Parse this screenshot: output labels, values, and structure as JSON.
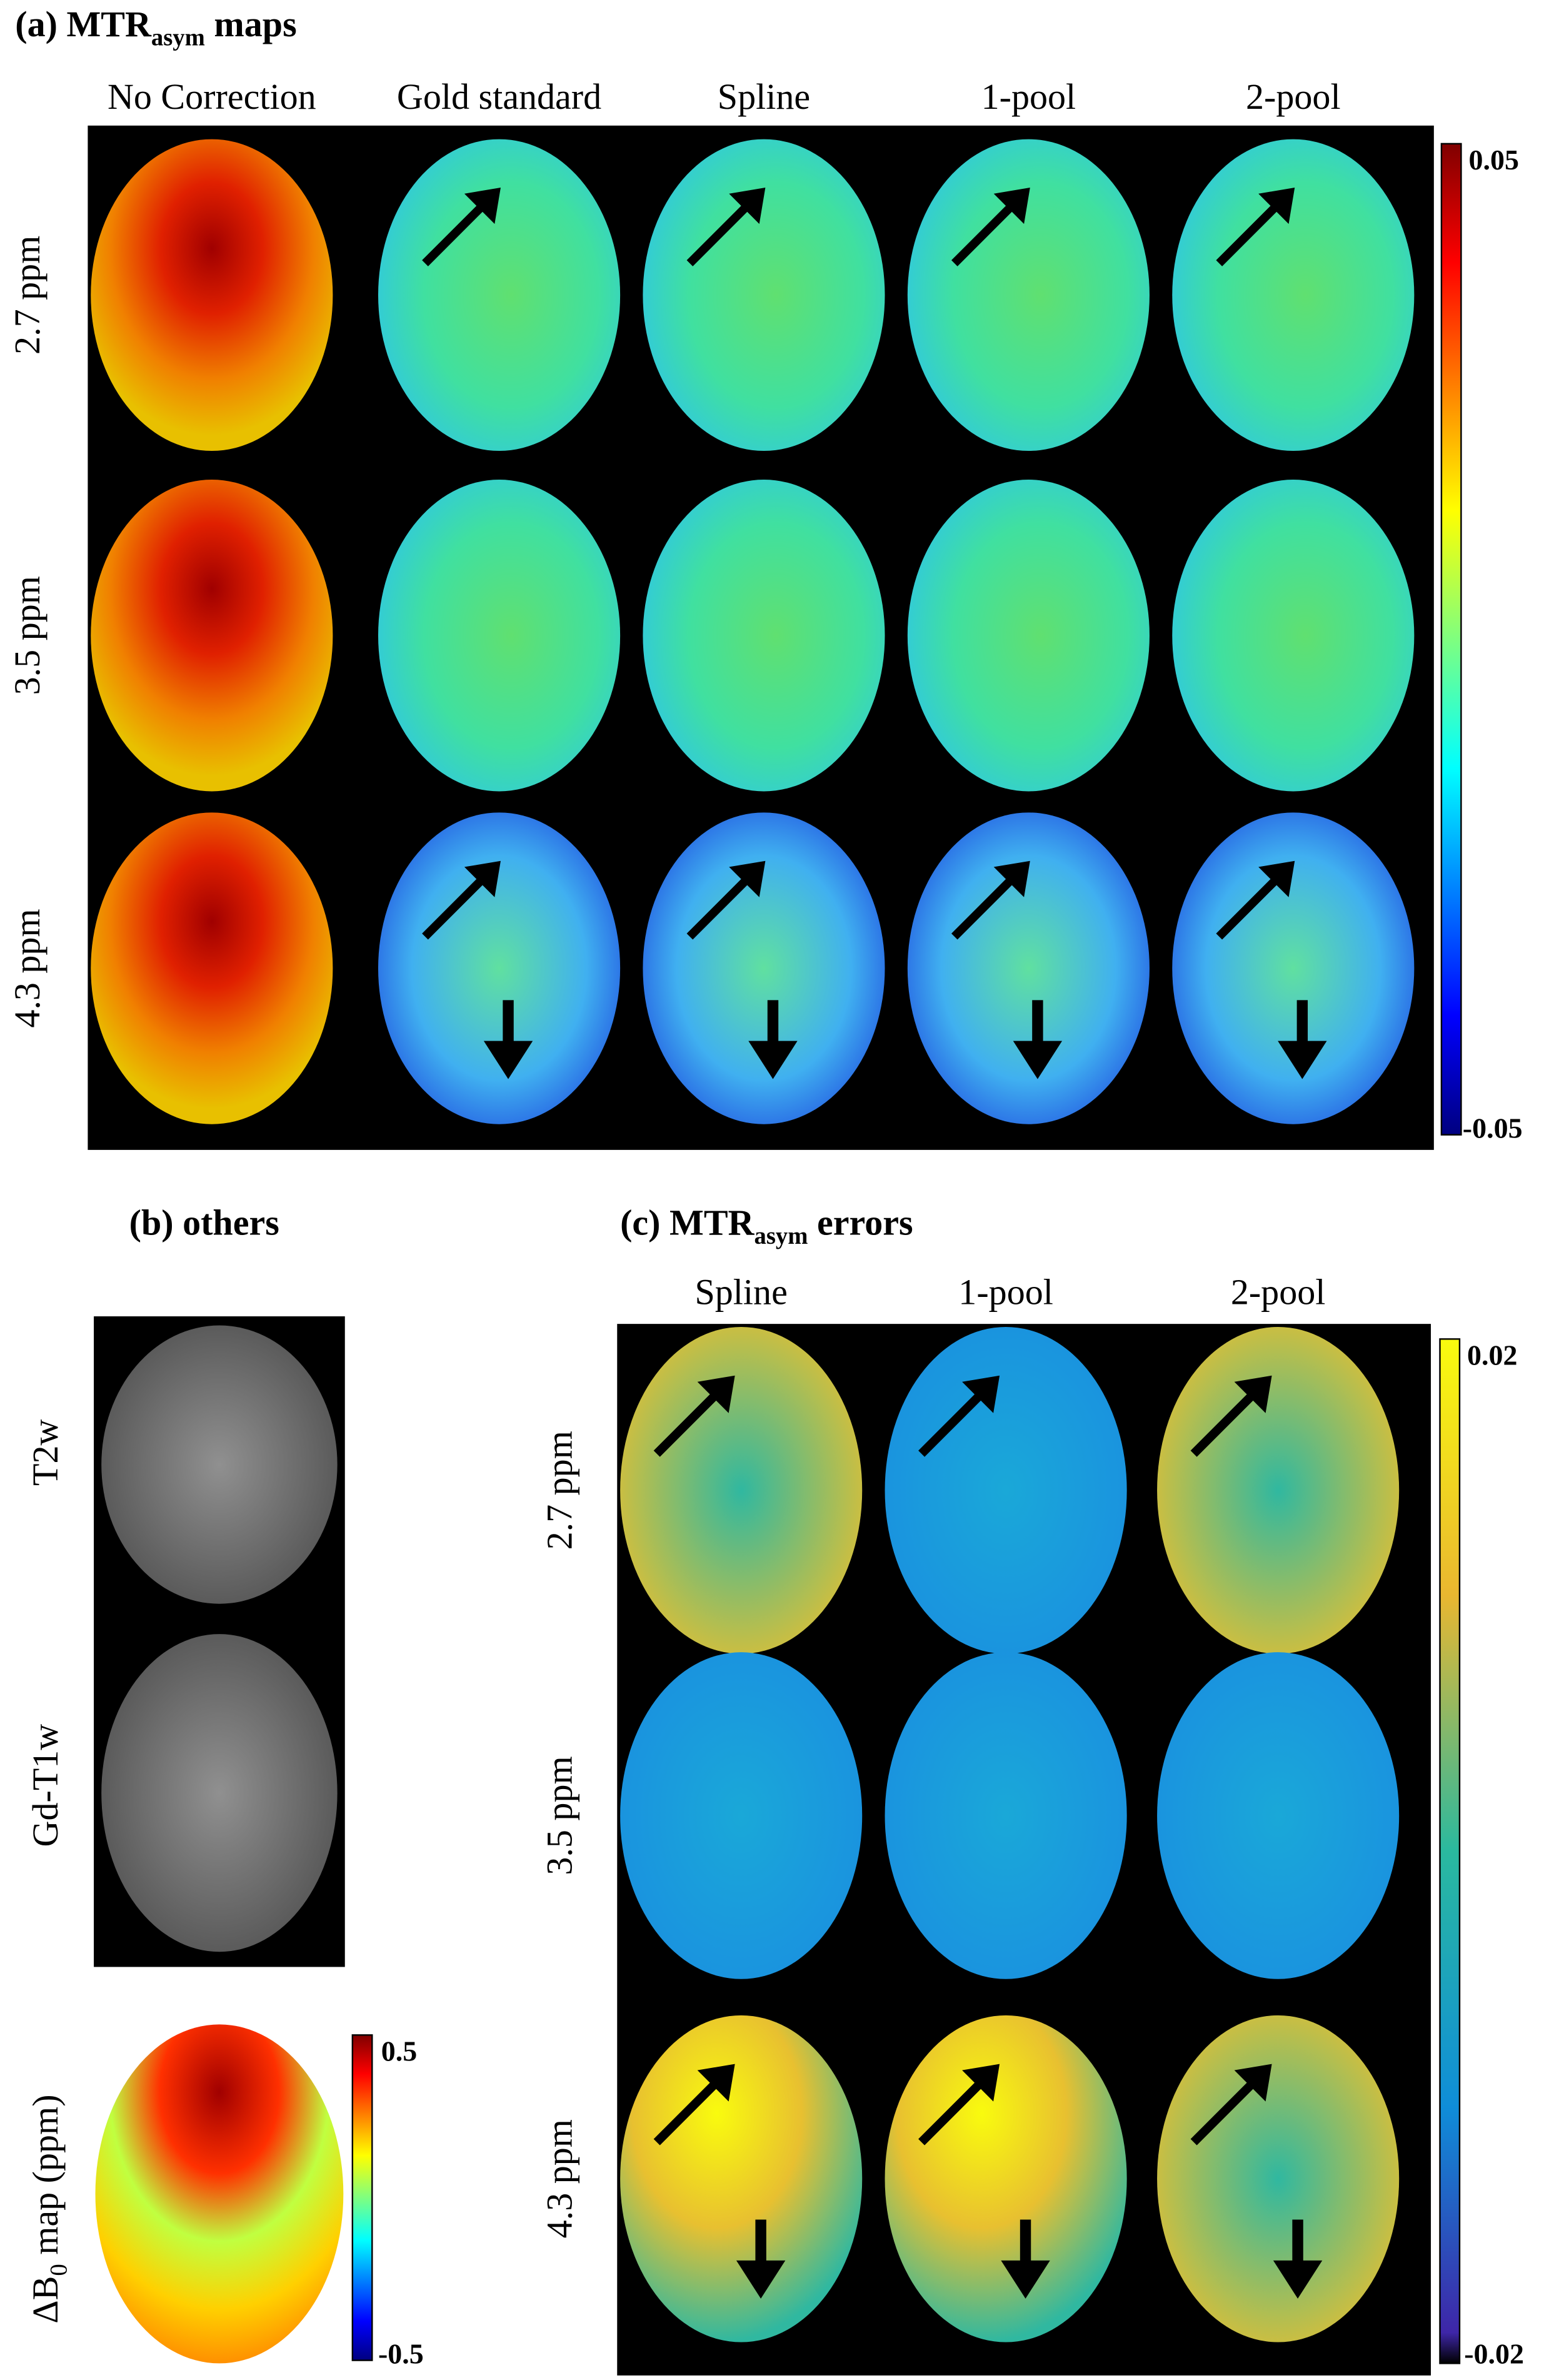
{
  "panel_a": {
    "title_prefix": "(a) MTR",
    "title_sub": "asym",
    "title_suffix": " maps",
    "columns": [
      "No Correction",
      "Gold standard",
      "Spline",
      "1-pool",
      "2-pool"
    ],
    "rows": [
      "2.7 ppm",
      "3.5 ppm",
      "4.3 ppm"
    ],
    "colorbar": {
      "max": 0.05,
      "min": -0.05
    }
  },
  "panel_b": {
    "title": "(b) others",
    "rows": [
      "T2w",
      "Gd-T1w"
    ],
    "b0_prefix": "ΔB",
    "b0_sub": "0",
    "b0_suffix": " map (ppm)",
    "colorbar": {
      "max": 0.5,
      "min": -0.5
    }
  },
  "panel_c": {
    "title_prefix": "(c) MTR",
    "title_sub": "asym",
    "title_suffix": " errors",
    "columns": [
      "Spline",
      "1-pool",
      "2-pool"
    ],
    "rows": [
      "2.7 ppm",
      "3.5 ppm",
      "4.3 ppm"
    ],
    "colorbar": {
      "max": 0.02,
      "min": -0.02
    }
  }
}
